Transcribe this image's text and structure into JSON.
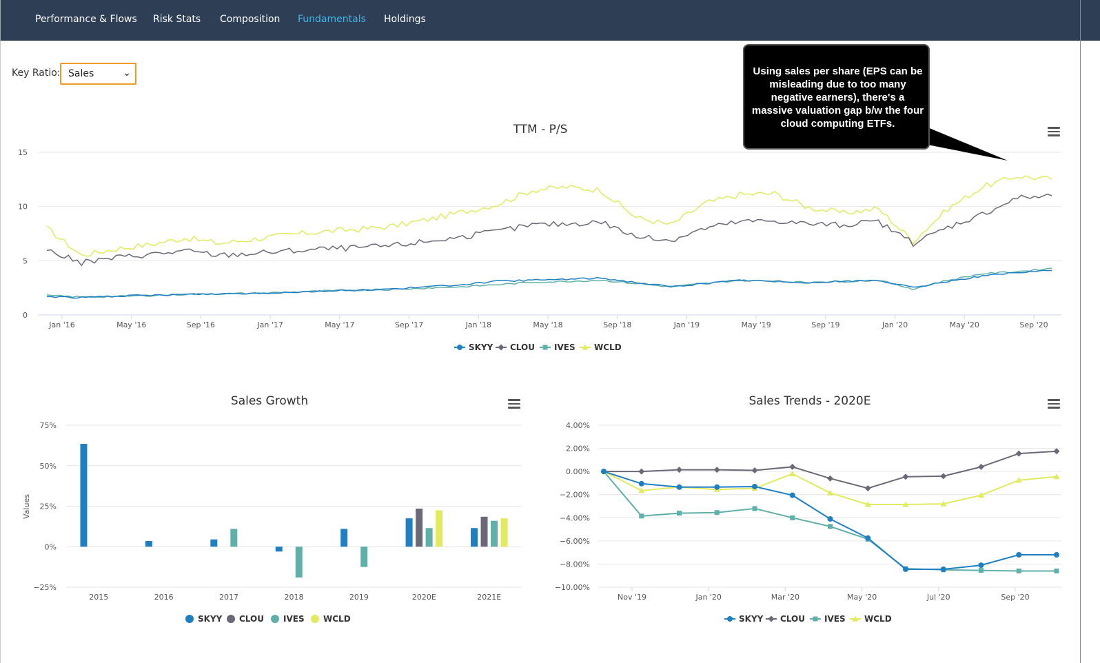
{
  "nav": {
    "items": [
      {
        "label": "Performance & Flows",
        "active": false
      },
      {
        "label": "Risk Stats",
        "active": false
      },
      {
        "label": "Composition",
        "active": false
      },
      {
        "label": "Fundamentals",
        "active": true
      },
      {
        "label": "Holdings",
        "active": false
      }
    ]
  },
  "controls": {
    "key_ratio_label": "Key Ratio:",
    "key_ratio_value": "Sales"
  },
  "callout": {
    "text": "Using sales per share (EPS can be misleading due to too many negative earners), there's a massive valuation gap b/w the four cloud computing ETFs."
  },
  "colors": {
    "SKYY": "#1f7fc3",
    "CLOU": "#6b6878",
    "IVES": "#60b0aa",
    "WCLD": "#e2ea5e",
    "nav_bg": "#2d3e55",
    "nav_active": "#3fb7e8",
    "select_border": "#f39a24"
  },
  "chart_data": [
    {
      "type": "line",
      "title": "TTM - P/S",
      "ylim": [
        0,
        15
      ],
      "yticks": [
        0,
        5,
        10,
        15
      ],
      "xtick_labels": [
        "Jan '16",
        "May '16",
        "Sep '16",
        "Jan '17",
        "May '17",
        "Sep '17",
        "Jan '18",
        "May '18",
        "Sep '18",
        "Jan '19",
        "May '19",
        "Sep '19",
        "Jan '20",
        "May '20",
        "Sep '20"
      ],
      "x": [
        "Jan '16",
        "Mar '16",
        "May '16",
        "Jul '16",
        "Sep '16",
        "Nov '16",
        "Jan '17",
        "Mar '17",
        "May '17",
        "Jul '17",
        "Sep '17",
        "Nov '17",
        "Jan '18",
        "Mar '18",
        "May '18",
        "Jul '18",
        "Sep '18",
        "Nov '18",
        "Jan '19",
        "Mar '19",
        "May '19",
        "Jul '19",
        "Sep '19",
        "Nov '19",
        "Jan '20",
        "Mar '20",
        "May '20",
        "Jul '20",
        "Sep '20",
        "Oct '20"
      ],
      "legend": "bottom-center",
      "grid": true,
      "series": [
        {
          "name": "SKYY",
          "marker": "circle",
          "values": [
            1.7,
            1.6,
            1.75,
            1.8,
            1.9,
            1.95,
            2.0,
            2.1,
            2.2,
            2.3,
            2.4,
            2.6,
            2.8,
            3.1,
            3.2,
            3.3,
            3.4,
            3.0,
            2.6,
            2.9,
            3.2,
            3.1,
            3.0,
            3.1,
            3.2,
            2.5,
            3.1,
            3.6,
            3.9,
            4.1
          ]
        },
        {
          "name": "CLOU",
          "marker": "diamond",
          "values": [
            6.0,
            4.8,
            5.3,
            5.6,
            5.9,
            5.5,
            5.7,
            5.9,
            6.1,
            6.2,
            6.4,
            6.8,
            7.2,
            7.7,
            8.3,
            8.4,
            8.6,
            7.2,
            6.9,
            8.0,
            8.6,
            8.7,
            8.4,
            8.3,
            8.6,
            6.6,
            8.1,
            9.3,
            10.8,
            11.0
          ]
        },
        {
          "name": "IVES",
          "marker": "square",
          "values": [
            1.8,
            1.65,
            1.7,
            1.8,
            1.9,
            1.95,
            2.0,
            2.1,
            2.2,
            2.3,
            2.35,
            2.5,
            2.6,
            2.8,
            3.0,
            3.1,
            3.2,
            2.9,
            2.6,
            2.9,
            3.2,
            3.1,
            3.0,
            3.1,
            3.2,
            2.4,
            3.2,
            3.8,
            4.0,
            4.3
          ]
        },
        {
          "name": "WCLD",
          "marker": "triangle",
          "values": [
            8.0,
            5.5,
            6.1,
            6.5,
            7.1,
            6.6,
            7.0,
            7.4,
            7.7,
            7.9,
            8.2,
            8.8,
            9.5,
            10.2,
            11.5,
            11.8,
            11.5,
            9.0,
            8.3,
            10.3,
            11.1,
            11.2,
            9.9,
            9.4,
            9.8,
            6.8,
            9.8,
            11.8,
            12.8,
            12.5
          ]
        }
      ]
    },
    {
      "type": "bar",
      "title": "Sales Growth",
      "ylabel": "Values",
      "ylim": [
        -25,
        75
      ],
      "yticks": [
        -25,
        0,
        25,
        50,
        75
      ],
      "ytick_labels": [
        "−25%",
        "0%",
        "25%",
        "50%",
        "75%"
      ],
      "categories": [
        "2015",
        "2016",
        "2017",
        "2018",
        "2019",
        "2020E",
        "2021E"
      ],
      "legend": "bottom-center",
      "grid": true,
      "series": [
        {
          "name": "SKYY",
          "values": [
            63.5,
            3.5,
            4.5,
            -3.0,
            11.0,
            17.5,
            11.5
          ]
        },
        {
          "name": "CLOU",
          "values": [
            null,
            null,
            null,
            null,
            null,
            23.5,
            18.5
          ]
        },
        {
          "name": "IVES",
          "values": [
            null,
            null,
            11.0,
            -19.0,
            -12.5,
            11.5,
            16.0
          ]
        },
        {
          "name": "WCLD",
          "values": [
            null,
            null,
            null,
            null,
            null,
            22.5,
            17.5
          ]
        }
      ]
    },
    {
      "type": "line",
      "title": "Sales Trends - 2020E",
      "ylim": [
        -10,
        4
      ],
      "yticks": [
        -10,
        -8,
        -6,
        -4,
        -2,
        0,
        2,
        4
      ],
      "ytick_labels": [
        "−10.00%",
        "−8.00%",
        "−6.00%",
        "−4.00%",
        "−2.00%",
        "0.00%",
        "2.00%",
        "4.00%"
      ],
      "xtick_labels": [
        "Nov '19",
        "Jan '20",
        "Mar '20",
        "May '20",
        "Jul '20",
        "Sep '20"
      ],
      "legend": "bottom-center",
      "grid": true,
      "series": [
        {
          "name": "SKYY",
          "marker": "circle",
          "values": [
            0.0,
            -1.05,
            -1.35,
            -1.35,
            -1.3,
            -2.05,
            -4.1,
            -5.75,
            -8.45,
            -8.45,
            -8.1,
            -7.2,
            -7.2
          ]
        },
        {
          "name": "CLOU",
          "marker": "diamond",
          "values": [
            0.0,
            0.0,
            0.15,
            0.15,
            0.1,
            0.4,
            -0.6,
            -1.45,
            -0.45,
            -0.4,
            0.4,
            1.55,
            1.75
          ]
        },
        {
          "name": "IVES",
          "marker": "square",
          "values": [
            0.0,
            -3.85,
            -3.6,
            -3.55,
            -3.2,
            -4.0,
            -4.75,
            -5.85,
            -8.4,
            -8.5,
            -8.55,
            -8.6,
            -8.6
          ]
        },
        {
          "name": "WCLD",
          "marker": "triangle",
          "values": [
            0.0,
            -1.65,
            -1.35,
            -1.55,
            -1.45,
            -0.2,
            -1.85,
            -2.85,
            -2.85,
            -2.8,
            -2.05,
            -0.75,
            -0.45
          ]
        }
      ]
    }
  ]
}
